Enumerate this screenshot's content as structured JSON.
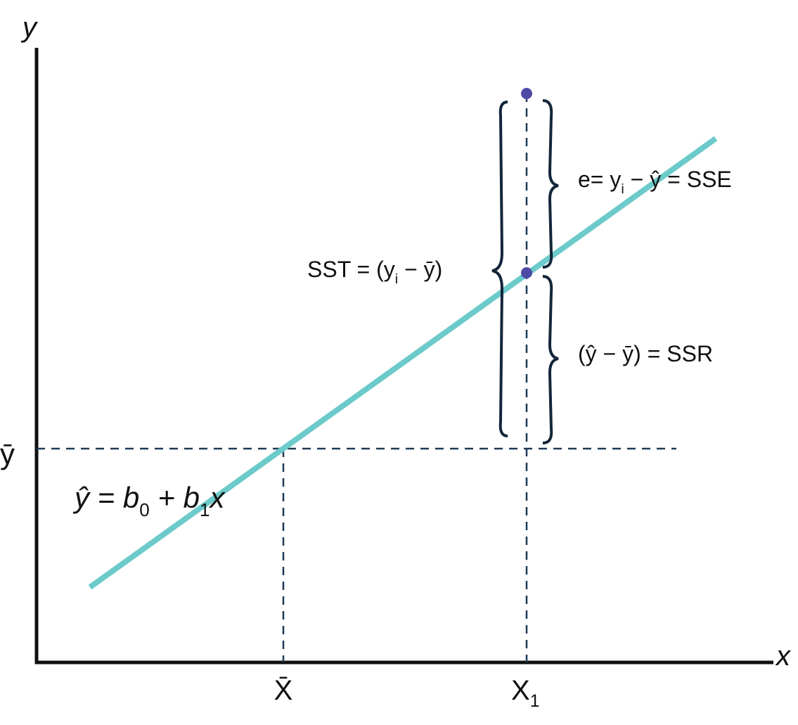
{
  "axes": {
    "y_label": "y",
    "x_label": "x",
    "y_mean": "ȳ",
    "x_mean": "X̄",
    "x1": {
      "base": "X",
      "sub": "1"
    }
  },
  "regression_line": {
    "label": [
      "ŷ = b",
      "0",
      " + b",
      "1",
      "x"
    ]
  },
  "annotations": {
    "sst": [
      "SST = (y",
      "i",
      " − ȳ)"
    ],
    "sse": [
      "e= y",
      "i",
      " − ŷ = SSE"
    ],
    "ssr": [
      "(ŷ − ȳ) = SSR"
    ]
  }
}
